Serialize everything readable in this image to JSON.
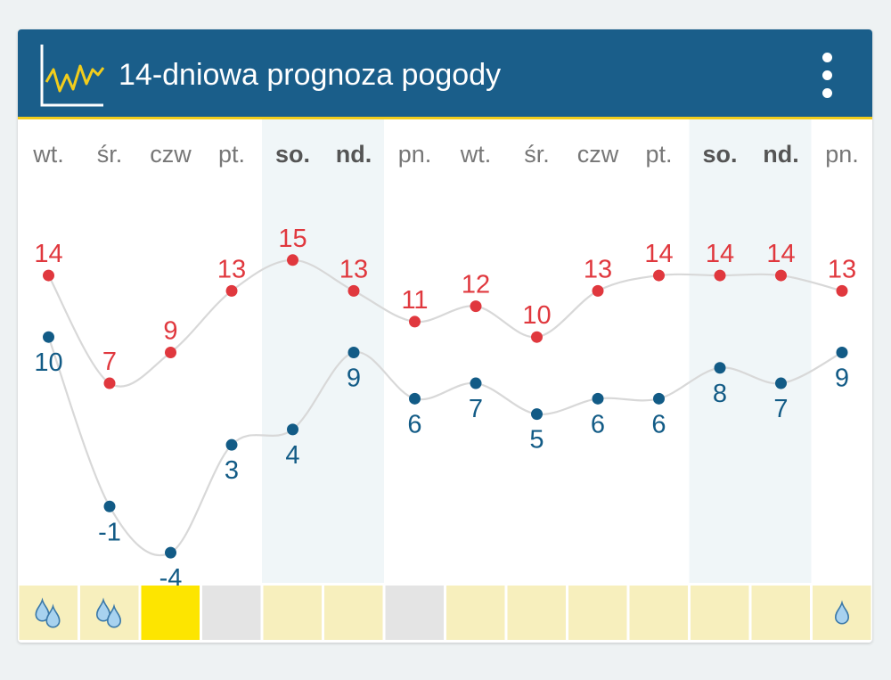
{
  "header": {
    "title": "14-dniowa prognoza pogody"
  },
  "colors": {
    "header_bg": "#1a5e8a",
    "accent_line": "#f2cd1c",
    "high_temp": "#e0383e",
    "low_temp": "#125b86",
    "curve": "#d8d8d8",
    "weekend_bg": "#f0f6f8",
    "cell_default": "#f7efbd",
    "cell_sunny": "#fde500",
    "cell_gray": "#e4e4e4",
    "drop_fill": "#a8d2ef",
    "drop_stroke": "#3a78a8"
  },
  "chart_data": {
    "type": "line",
    "categories": [
      "wt.",
      "śr.",
      "czw",
      "pt.",
      "so.",
      "nd.",
      "pn.",
      "wt.",
      "śr.",
      "czw",
      "pt.",
      "so.",
      "nd.",
      "pn."
    ],
    "weekend": [
      false,
      false,
      false,
      false,
      true,
      true,
      false,
      false,
      false,
      false,
      false,
      true,
      true,
      false
    ],
    "series": [
      {
        "values": [
          14,
          7,
          9,
          13,
          15,
          13,
          11,
          12,
          10,
          13,
          14,
          14,
          14,
          13
        ],
        "color": "#e0383e"
      },
      {
        "values": [
          10,
          -1,
          -4,
          3,
          4,
          9,
          6,
          7,
          5,
          6,
          6,
          8,
          7,
          9
        ],
        "color": "#125b86"
      }
    ],
    "precipitation_icons": [
      "drops",
      "drops",
      "none",
      "none",
      "none",
      "none",
      "none",
      "none",
      "none",
      "none",
      "none",
      "none",
      "none",
      "drop"
    ],
    "day_cells": [
      "default",
      "default",
      "sunny",
      "gray",
      "default",
      "default",
      "gray",
      "default",
      "default",
      "default",
      "default",
      "default",
      "default",
      "default"
    ],
    "title": "14-dniowa prognoza pogody",
    "xlabel": "",
    "ylabel": ""
  }
}
